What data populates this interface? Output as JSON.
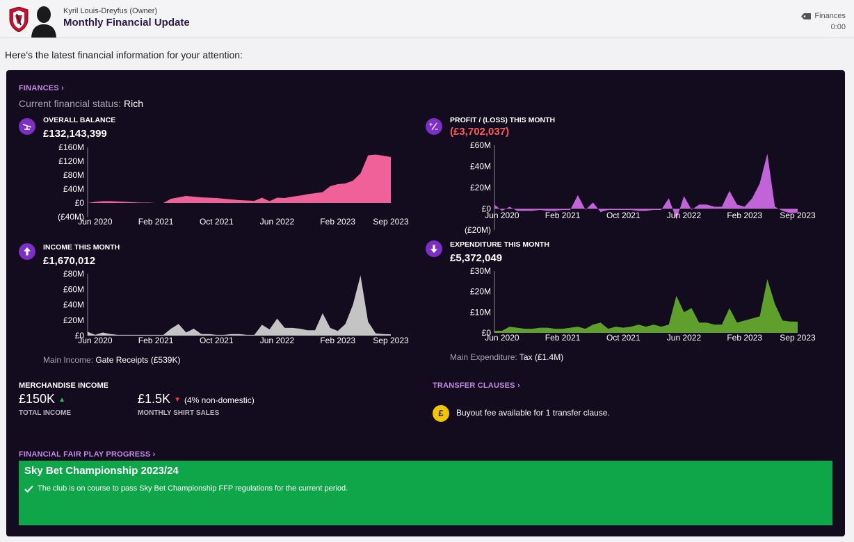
{
  "header": {
    "sender": "Kyril Louis-Dreyfus  (Owner)",
    "subject": "Monthly Financial Update",
    "tag": "Finances",
    "time": "0:00",
    "tag_icon": "tag-icon"
  },
  "intro": "Here's the latest financial information for your attention:",
  "finances": {
    "link": "FINANCES",
    "status_label": "Current financial status:",
    "status_value": "Rich",
    "balance": {
      "label": "OVERALL BALANCE",
      "value": "£132,143,399",
      "icon": "balance-scale-icon"
    },
    "profit": {
      "label": "PROFIT / (LOSS) THIS MONTH",
      "value": "(£3,702,037)",
      "icon": "plus-minus-icon"
    },
    "income": {
      "label": "INCOME THIS MONTH",
      "value": "£1,670,012",
      "icon": "arrow-up-icon",
      "main_label": "Main Income:",
      "main_value": "Gate Receipts (£539K)"
    },
    "expenditure": {
      "label": "EXPENDITURE THIS MONTH",
      "value": "£5,372,049",
      "icon": "arrow-down-icon",
      "main_label": "Main Expenditure:",
      "main_value": "Tax (£1.4M)"
    }
  },
  "merch": {
    "title": "MERCHANDISE INCOME",
    "total_value": "£150K",
    "total_label": "TOTAL INCOME",
    "shirt_value": "£1.5K",
    "shirt_note": "(4% non-domestic)",
    "shirt_label": "MONTHLY SHIRT SALES"
  },
  "transfer": {
    "link": "TRANSFER CLAUSES",
    "text": "Buyout fee available for 1 transfer clause.",
    "icon": "pound-coin-icon"
  },
  "ffp": {
    "link": "FINANCIAL FAIR PLAY PROGRESS",
    "title": "Sky Bet Championship 2023/24",
    "message": "The club is on course to pass Sky Bet Championship FFP regulations for the current period.",
    "icon": "check-icon"
  },
  "colors": {
    "accent": "#c58ae6",
    "panel": "#130b1e",
    "icon_bg": "#7b2fc4",
    "negative": "#ff5a5a",
    "ffp_green": "#0fa64a"
  },
  "chart_data": [
    {
      "id": "balance",
      "type": "area",
      "color": "#f0619a",
      "x_ticks": [
        "Jun 2020",
        "Feb 2021",
        "Oct 2021",
        "Jun 2022",
        "Feb 2023",
        "Sep 2023"
      ],
      "y_ticks": [
        "£160M",
        "£120M",
        "£80M",
        "£40M",
        "£0",
        "(£40M)"
      ],
      "ylim": [
        -40,
        160
      ],
      "unit": "£M",
      "values": [
        0,
        3,
        5,
        5,
        4,
        3,
        2,
        1,
        1,
        0,
        0,
        12,
        16,
        20,
        18,
        16,
        15,
        14,
        12,
        10,
        8,
        7,
        6,
        15,
        5,
        15,
        14,
        18,
        21,
        25,
        28,
        31,
        48,
        54,
        56,
        64,
        85,
        137,
        139,
        136,
        132
      ]
    },
    {
      "id": "profit",
      "type": "area",
      "color": "#c064d8",
      "x_ticks": [
        "Jun 2020",
        "Feb 2021",
        "Oct 2021",
        "Jun 2022",
        "Feb 2023",
        "Sep 2023"
      ],
      "y_ticks": [
        "£60M",
        "£40M",
        "£20M",
        "£0",
        "(£20M)"
      ],
      "ylim": [
        -20,
        60
      ],
      "unit": "£M",
      "values": [
        4,
        -2,
        2,
        -2,
        -2,
        -2,
        -1,
        -2,
        -2,
        -1,
        -1,
        13,
        -1,
        6,
        -3,
        -1,
        -1,
        -1,
        -1,
        -2,
        -2,
        -1,
        -1,
        10,
        -10,
        12,
        -1,
        4,
        4,
        2,
        2,
        17,
        4,
        2,
        10,
        24,
        52,
        2,
        -2,
        -4,
        -3.7
      ]
    },
    {
      "id": "income",
      "type": "area",
      "color": "#c4c4c4",
      "x_ticks": [
        "Jun 2020",
        "Feb 2021",
        "Oct 2021",
        "Jun 2022",
        "Feb 2023",
        "Sep 2023"
      ],
      "y_ticks": [
        "£80M",
        "£60M",
        "£40M",
        "£20M",
        "£0"
      ],
      "ylim": [
        0,
        80
      ],
      "unit": "£M",
      "values": [
        5,
        1,
        4,
        2,
        1,
        1,
        1,
        1,
        1,
        1,
        1,
        9,
        15,
        4,
        9,
        2,
        2,
        1,
        1,
        2,
        2,
        1,
        1,
        14,
        8,
        22,
        10,
        10,
        9,
        7,
        7,
        29,
        10,
        6,
        15,
        40,
        78,
        18,
        3,
        2,
        1.7
      ]
    },
    {
      "id": "expenditure",
      "type": "area",
      "color": "#5fa02c",
      "x_ticks": [
        "Jun 2020",
        "Feb 2021",
        "Oct 2021",
        "Jun 2022",
        "Feb 2023",
        "Sep 2023"
      ],
      "y_ticks": [
        "£30M",
        "£20M",
        "£10M",
        "£0"
      ],
      "ylim": [
        0,
        30
      ],
      "unit": "£M",
      "values": [
        1,
        1,
        3,
        2.5,
        2,
        2,
        2.5,
        2.5,
        2,
        2,
        2.5,
        3,
        2,
        4,
        5,
        2,
        3,
        2.5,
        3,
        4,
        3,
        4,
        3,
        4,
        18,
        10,
        12,
        5,
        5,
        4,
        4,
        12,
        5,
        6,
        7,
        8,
        26,
        14,
        6,
        5.5,
        5.4
      ]
    }
  ]
}
